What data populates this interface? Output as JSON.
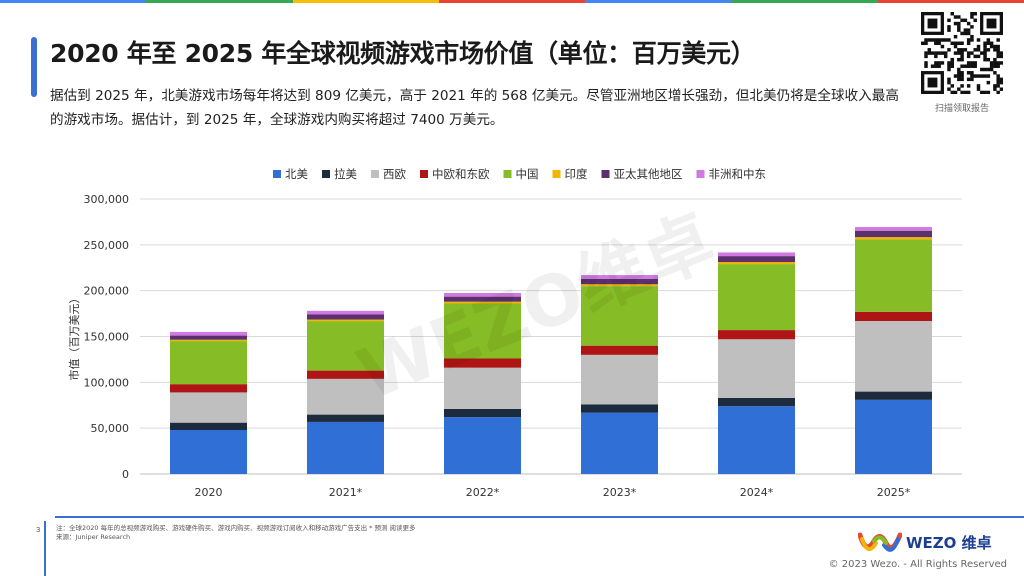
{
  "title": "2020 年至 2025 年全球视频游戏市场价值（单位：百万美元）",
  "description": "据估到 2025 年，北美游戏市场每年将达到 809 亿美元，高于 2021 年的 568 亿美元。尽管亚洲地区增长强劲，但北美仍将是全球收入最高的游戏市场。据估计，到 2025 年，全球游戏内购买将超过 7400 万美元。",
  "qr_caption": "扫描领取报告",
  "watermark": "WEZO维卓",
  "page_number": "3",
  "footnote_line1": "注：全球2020 每年的总视频游戏购买、游戏硬件购买、游戏内购买、视频游戏订阅收入和移动游戏广告支出 * 预测 阅读更多",
  "footnote_line2": "来源：Juniper Research",
  "brand_name": "WEZO 维卓",
  "copyright": "© 2023 Wezo. - All Rights Reserved",
  "colors": {
    "accent": "#3b6fd4",
    "topbar": [
      "#4285f4",
      "#34a853",
      "#fbbc05",
      "#ea4335",
      "#4285f4",
      "#34a853",
      "#ea4335"
    ]
  },
  "chart_data": {
    "type": "bar",
    "stacked": true,
    "title": "",
    "xlabel": "",
    "ylabel": "市值（百万美元）",
    "ylim": [
      0,
      300000
    ],
    "yticks": [
      0,
      50000,
      100000,
      150000,
      200000,
      250000,
      300000
    ],
    "ytick_labels": [
      "0",
      "50,000",
      "100,000",
      "150,000",
      "200,000",
      "250,000",
      "300,000"
    ],
    "legend_position": "top",
    "categories": [
      "2020",
      "2021*",
      "2022*",
      "2023*",
      "2024*",
      "2025*"
    ],
    "series": [
      {
        "name": "北美",
        "color": "#2f6fd6",
        "values": [
          48000,
          56800,
          62000,
          67000,
          74000,
          80900
        ]
      },
      {
        "name": "拉美",
        "color": "#1d2b3e",
        "values": [
          8000,
          8000,
          9000,
          9000,
          9000,
          9000
        ]
      },
      {
        "name": "西欧",
        "color": "#bfbfbf",
        "values": [
          33000,
          39000,
          45000,
          54000,
          64000,
          77000
        ]
      },
      {
        "name": "中欧和东欧",
        "color": "#b01515",
        "values": [
          9000,
          9000,
          10000,
          10000,
          10000,
          10000
        ]
      },
      {
        "name": "中国",
        "color": "#86bc25",
        "values": [
          47000,
          54000,
          60000,
          65000,
          72000,
          79000
        ]
      },
      {
        "name": "印度",
        "color": "#f5b400",
        "values": [
          1500,
          1700,
          2000,
          2000,
          2200,
          2500
        ]
      },
      {
        "name": "亚太其他地区",
        "color": "#5c2f6e",
        "values": [
          4500,
          5500,
          5500,
          6000,
          6500,
          7000
        ]
      },
      {
        "name": "非洲和中东",
        "color": "#d079e0",
        "values": [
          4000,
          4000,
          4000,
          4000,
          4000,
          4000
        ]
      }
    ]
  }
}
